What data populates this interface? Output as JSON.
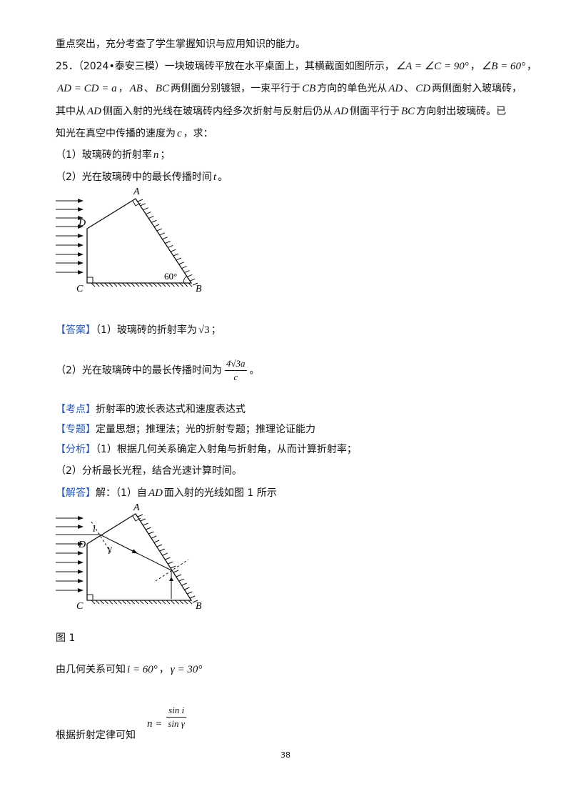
{
  "intro": "重点突出，充分考查了学生掌握知识与应用知识的能力。",
  "problem": {
    "lines": [
      [
        "25．（2024•泰安三模）一块玻璃砖平放在水平桌面上，其横截面如图所示，",
        "∠A = ∠C = 90°",
        "，",
        "∠B = 60°",
        "，"
      ],
      [
        "AD = CD = a",
        "，",
        "AB",
        "、",
        "BC",
        "两侧面分别镀银，一束平行于",
        "CB",
        "方向的单色光从",
        "AD",
        "、",
        "CD",
        "两侧面射入玻璃砖，"
      ],
      [
        "其中从",
        "AD",
        "侧面入射的光线在玻璃砖内经多次折射与反射后仍从",
        "AD",
        "侧面平行于",
        "BC",
        "方向射出玻璃砖。已"
      ],
      [
        "知光在真空中传播的速度为",
        "c",
        "，求："
      ],
      [
        "（1）玻璃砖的折射率",
        "n",
        "；"
      ],
      [
        "（2）光在玻璃砖中的最长传播时间",
        "t",
        "。"
      ]
    ],
    "figure_labels": {
      "A": "A",
      "B": "B",
      "C": "C",
      "D": "D",
      "angle": "60°"
    }
  },
  "answer": {
    "tag": "【答案】",
    "lines": [
      [
        "（1）玻璃砖的折射率为",
        "√3",
        "；"
      ],
      [
        "（2）光在玻璃砖中的最长传播时间为",
        "4√3a",
        "c",
        "。"
      ]
    ]
  },
  "keypoint": {
    "tag": "【考点】",
    "text": "折射率的波长表达式和速度表达式"
  },
  "topic": {
    "tag": "【专题】",
    "text": "定量思想；推理法；光的折射专题；推理论证能力"
  },
  "analysis": {
    "tag": "【分析】",
    "lines": [
      "（1）根据几何关系确定入射角与折射角，从而计算折射率；",
      "（2）分析最长光程，结合光速计算时间。"
    ]
  },
  "solution": {
    "tag": "【解答】",
    "intro": [
      "解：（1）自",
      "AD",
      "面入射的光线如图 1 所示"
    ],
    "figure_labels": {
      "A": "A",
      "B": "B",
      "C": "C",
      "D": "D",
      "i": "i",
      "gamma": "γ"
    },
    "figure_caption": "图 1",
    "geometry": [
      "由几何关系可知",
      "i = 60°",
      "，",
      "γ = 30°"
    ],
    "refraction": [
      "根据折射定律可知",
      "n =",
      "sin i",
      "sin γ"
    ]
  },
  "page_number": "38"
}
